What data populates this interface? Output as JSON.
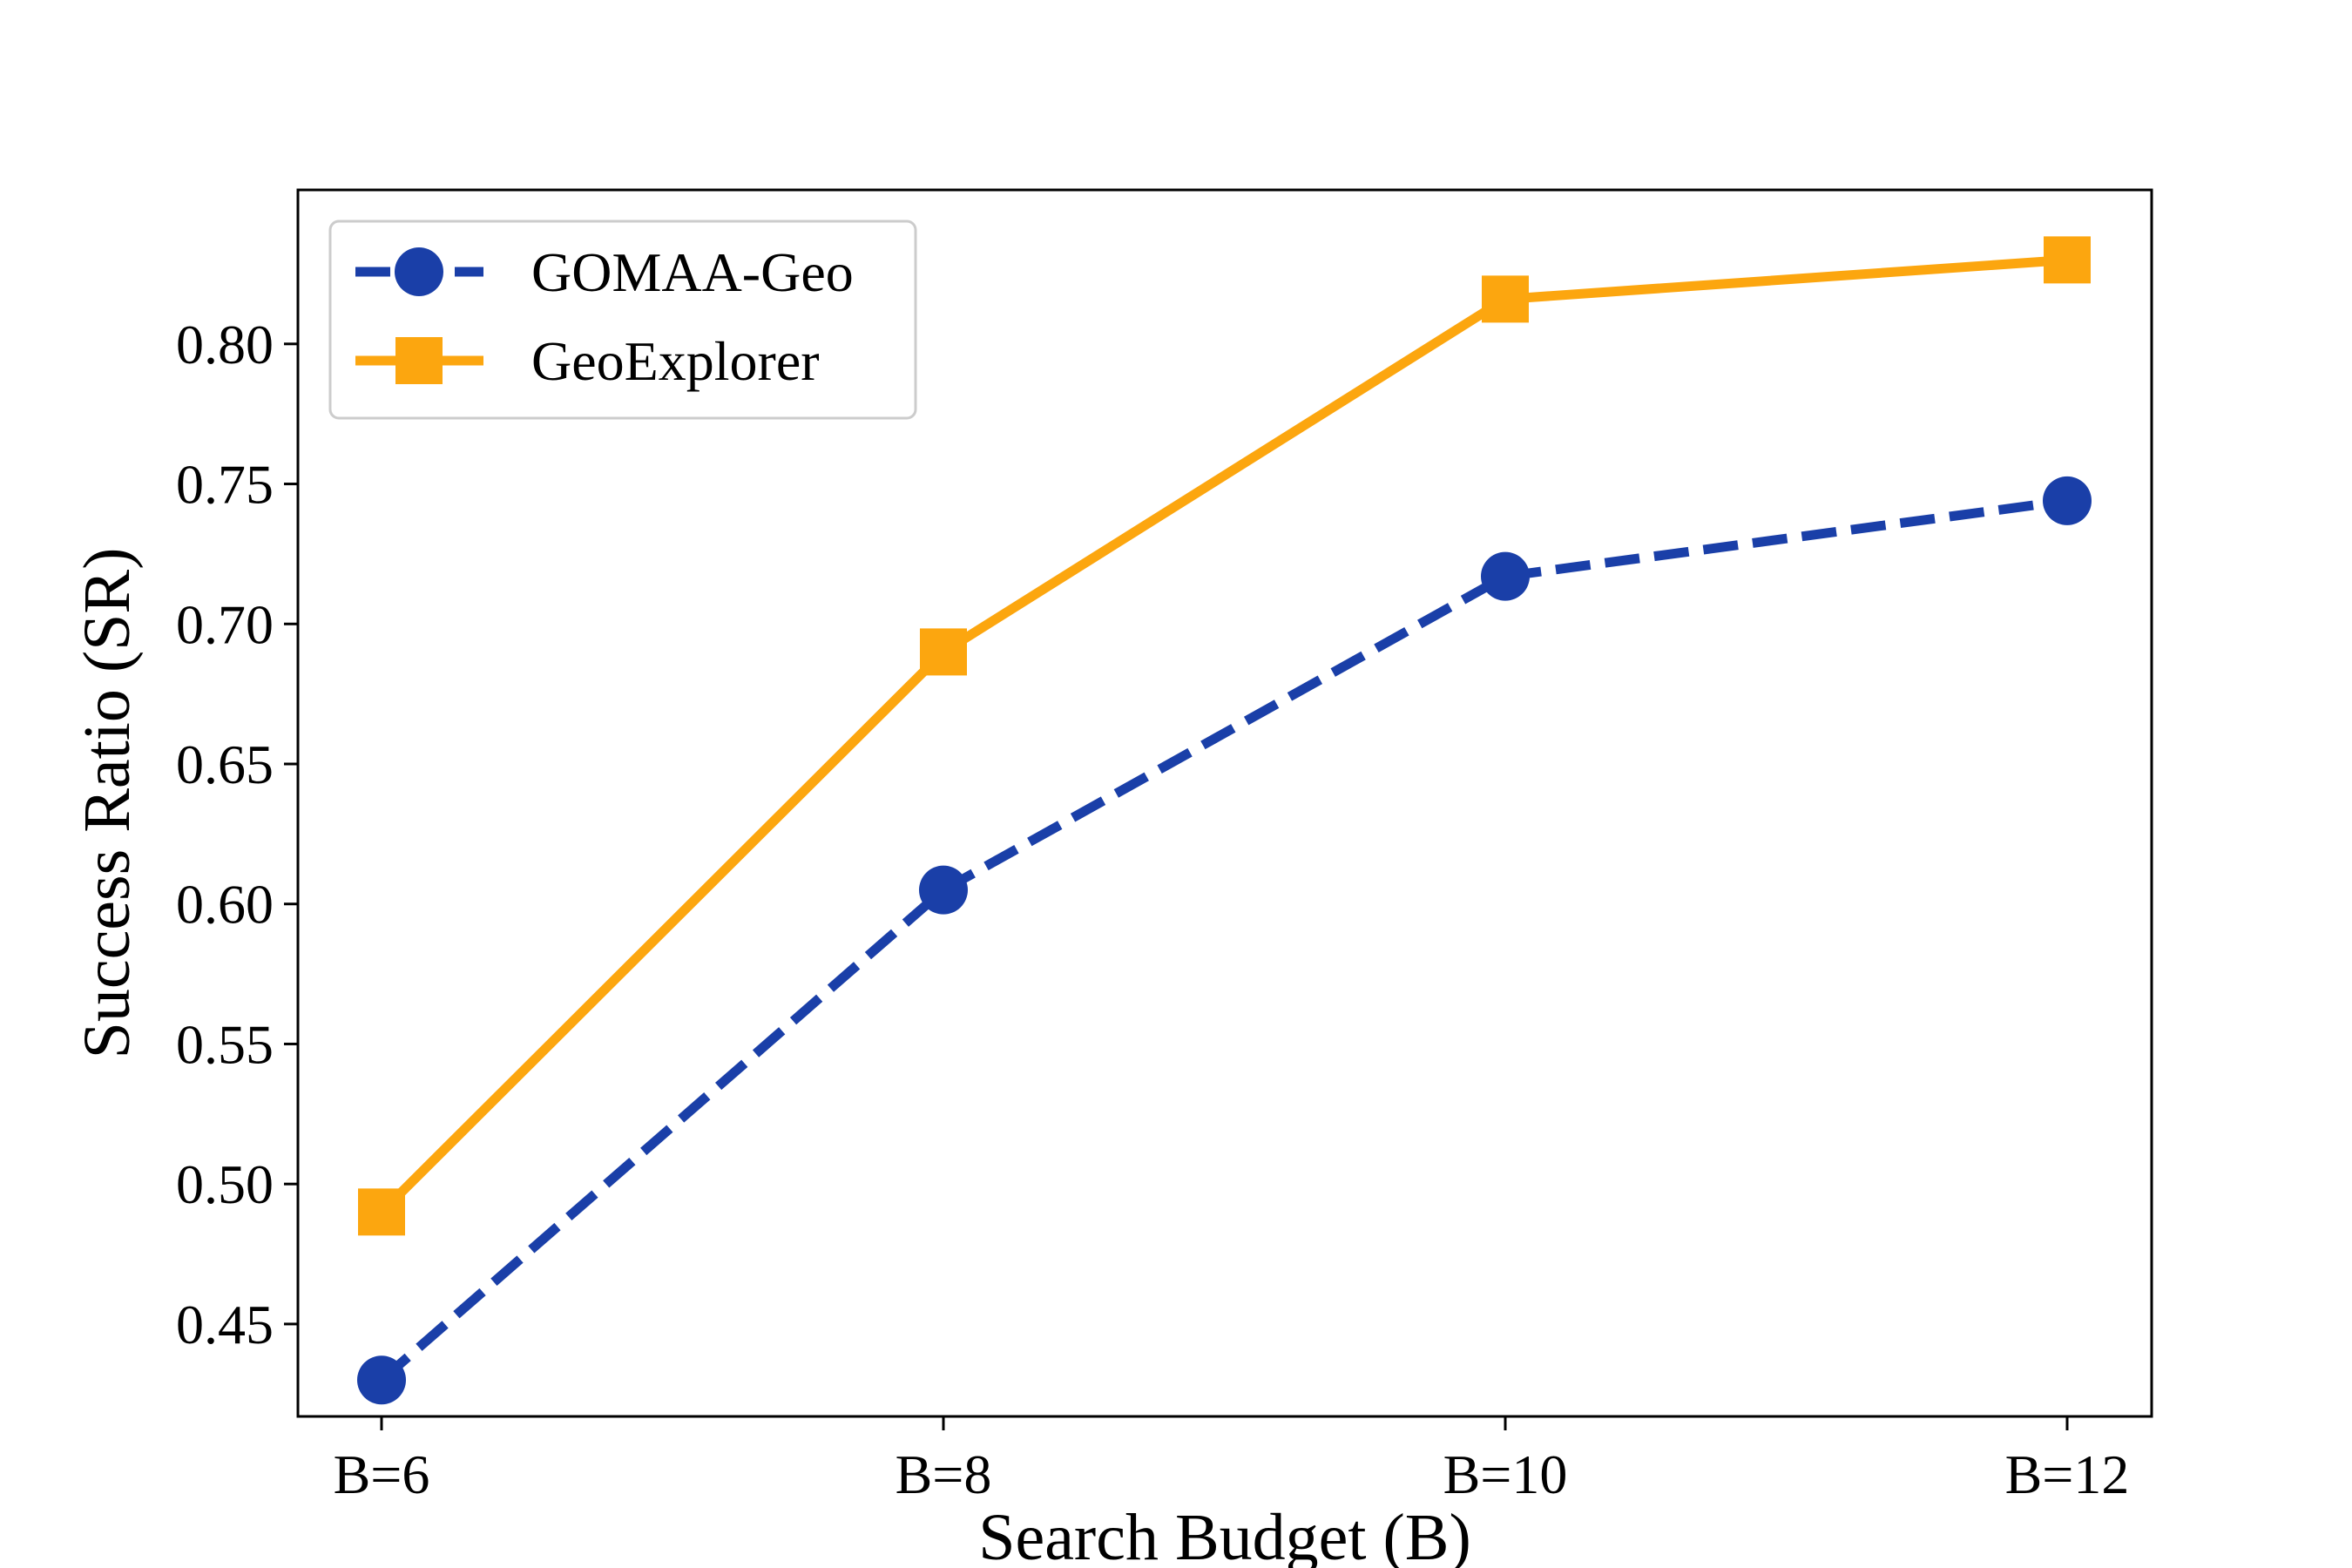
{
  "chart_data": {
    "type": "line",
    "title": "",
    "xlabel": "Search Budget (B)",
    "ylabel": "Success Ratio (SR)",
    "categories": [
      "B=6",
      "B=8",
      "B=10",
      "B=12"
    ],
    "ylim": [
      0.417,
      0.855
    ],
    "yticks": [
      0.45,
      0.5,
      0.55,
      0.6,
      0.65,
      0.7,
      0.75,
      0.8
    ],
    "ytick_labels": [
      "0.45",
      "0.50",
      "0.55",
      "0.60",
      "0.65",
      "0.70",
      "0.75",
      "0.80"
    ],
    "grid": false,
    "legend_position": "top-left",
    "series": [
      {
        "name": "GOMAA-Geo",
        "values": [
          0.43,
          0.605,
          0.717,
          0.744
        ],
        "color": "#1a3fa8",
        "marker": "circle",
        "linestyle": "dashed"
      },
      {
        "name": "GeoExplorer",
        "values": [
          0.49,
          0.69,
          0.816,
          0.83
        ],
        "color": "#fca60f",
        "marker": "square",
        "linestyle": "solid"
      }
    ]
  }
}
